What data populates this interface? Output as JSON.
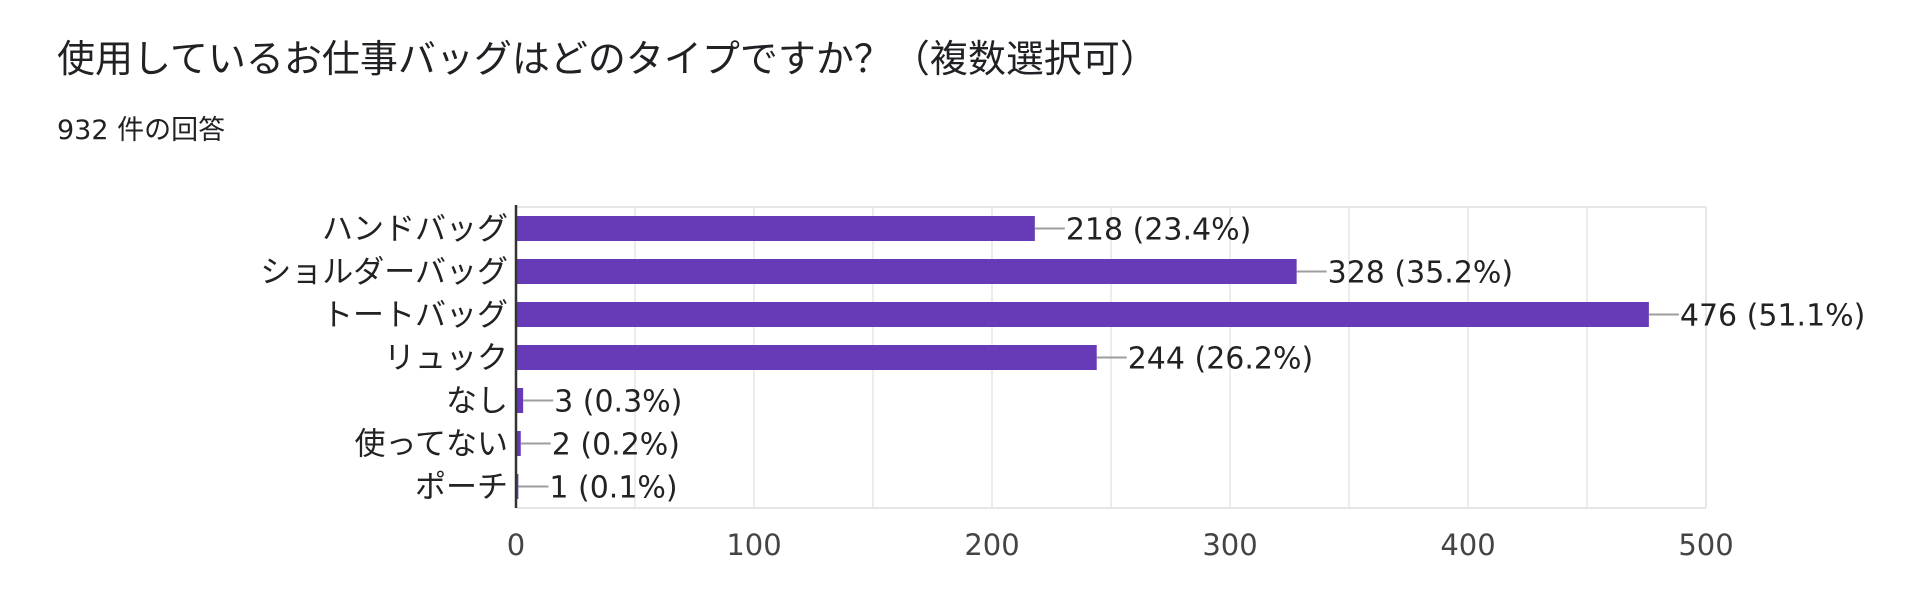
{
  "title": "使用しているお仕事バッグはどのタイプですか？（複数選択可）",
  "response_count": "932 件の回答",
  "colors": {
    "bar": "#673ab7",
    "gridline": "#e6e6e6",
    "axis": "#333333",
    "connector": "#9e9e9e"
  },
  "chart_data": {
    "type": "bar",
    "orientation": "horizontal",
    "categories": [
      "ハンドバッグ",
      "ショルダーバッグ",
      "トートバッグ",
      "リュック",
      "なし",
      "使ってない",
      "ポーチ"
    ],
    "values": [
      218,
      328,
      476,
      244,
      3,
      2,
      1
    ],
    "value_labels": [
      "218 (23.4%)",
      "328 (35.2%)",
      "476 (51.1%)",
      "244 (26.2%)",
      "3 (0.3%)",
      "2 (0.2%)",
      "1 (0.1%)"
    ],
    "xlim": [
      0,
      500
    ],
    "xticks": [
      0,
      100,
      200,
      300,
      400,
      500
    ],
    "grid": true
  }
}
